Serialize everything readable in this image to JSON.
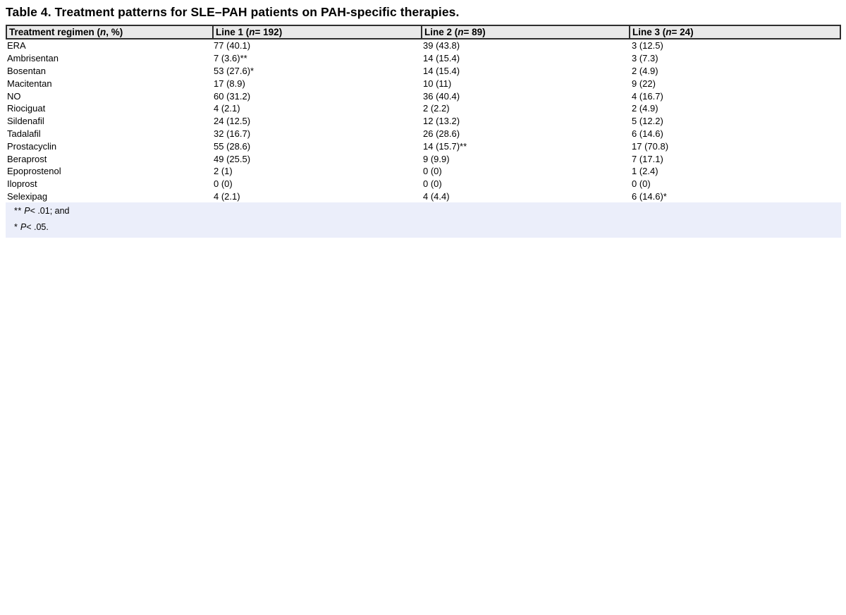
{
  "title": "Table 4. Treatment patterns for SLE–PAH patients on PAH-specific therapies.",
  "colors": {
    "header_bg": "#e9e9e9",
    "table_border": "#2e2e2e",
    "footnote_bg": "#ebeefa",
    "text": "#000000",
    "page_bg": "#ffffff"
  },
  "table": {
    "columns": [
      {
        "pre": "Treatment regimen (",
        "it": "n",
        "post": ", %)"
      },
      {
        "pre": "Line 1 (",
        "it": "n",
        "post": " = 192)"
      },
      {
        "pre": "Line 2 (",
        "it": "n",
        "post": " = 89)"
      },
      {
        "pre": "Line 3 (",
        "it": "n",
        "post": " = 24)"
      }
    ],
    "rows": [
      [
        "ERA",
        "77 (40.1)",
        "39 (43.8)",
        "3 (12.5)"
      ],
      [
        "Ambrisentan",
        "7 (3.6)**",
        "14 (15.4)",
        "3 (7.3)"
      ],
      [
        "Bosentan",
        "53 (27.6)*",
        "14 (15.4)",
        "2 (4.9)"
      ],
      [
        "Macitentan",
        "17 (8.9)",
        "10 (11)",
        "9 (22)"
      ],
      [
        "NO",
        "60 (31.2)",
        "36 (40.4)",
        "4 (16.7)"
      ],
      [
        "Riociguat",
        "4 (2.1)",
        "2 (2.2)",
        "2 (4.9)"
      ],
      [
        "Sildenafil",
        "24 (12.5)",
        "12 (13.2)",
        "5 (12.2)"
      ],
      [
        "Tadalafil",
        "32 (16.7)",
        "26 (28.6)",
        "6 (14.6)"
      ],
      [
        "Prostacyclin",
        "55 (28.6)",
        "14 (15.7)**",
        "17 (70.8)"
      ],
      [
        "Beraprost",
        "49 (25.5)",
        "9 (9.9)",
        "7 (17.1)"
      ],
      [
        "Epoprostenol",
        "2 (1)",
        "0 (0)",
        "1 (2.4)"
      ],
      [
        "Iloprost",
        "0 (0)",
        "0 (0)",
        "0 (0)"
      ],
      [
        "Selexipag",
        "4 (2.1)",
        "4 (4.4)",
        "6 (14.6)*"
      ]
    ]
  },
  "footnotes": [
    {
      "marker": "**",
      "p": "P",
      "rest": "< .01; and"
    },
    {
      "marker": "*",
      "p": "P",
      "rest": "< .05."
    }
  ]
}
